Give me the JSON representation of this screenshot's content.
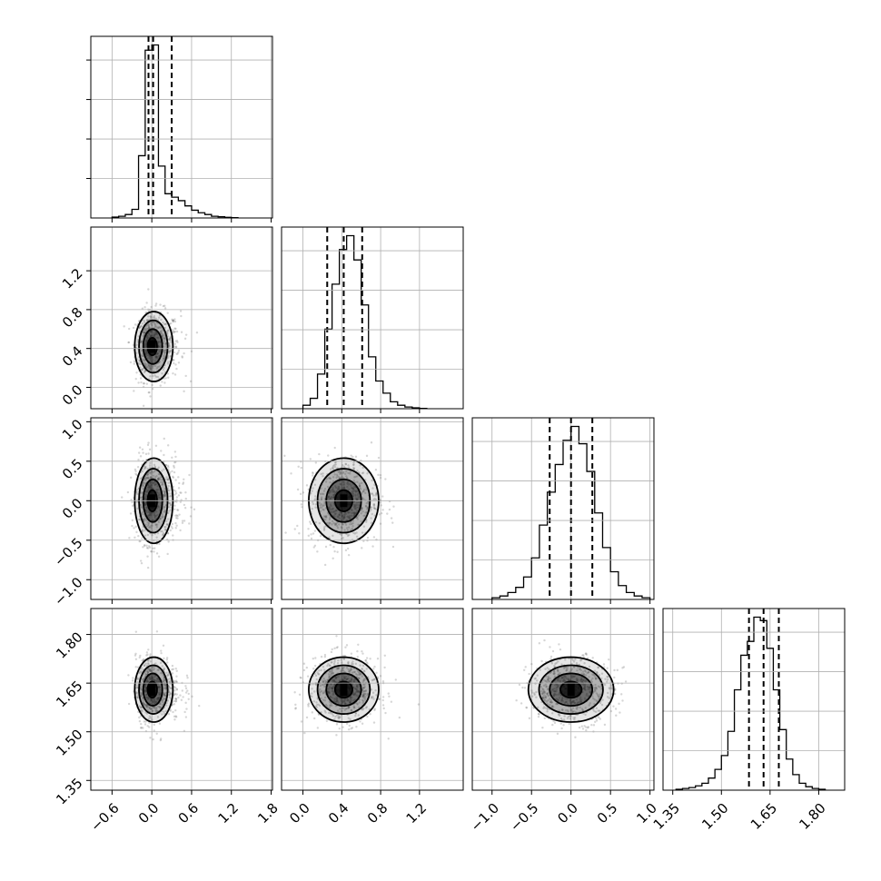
{
  "chart_data": {
    "type": "corner",
    "grid": true,
    "parameters": [
      {
        "range": [
          -0.92,
          1.82
        ],
        "ticks": [
          -0.6,
          0.0,
          0.6,
          1.2,
          1.8
        ],
        "tick_labels": [
          "−0.6",
          "0.0",
          "0.6",
          "1.2",
          "1.8"
        ],
        "histogram_bins": [
          -0.6,
          -0.5,
          -0.4,
          -0.3,
          -0.2,
          -0.1,
          0.0,
          0.1,
          0.2,
          0.3,
          0.4,
          0.5,
          0.6,
          0.7,
          0.8,
          0.9,
          1.0,
          1.1,
          1.2,
          1.3
        ],
        "histogram_density": [
          0.005,
          0.01,
          0.02,
          0.05,
          0.36,
          0.97,
          1.0,
          0.3,
          0.14,
          0.12,
          0.1,
          0.07,
          0.045,
          0.03,
          0.02,
          0.01,
          0.007,
          0.004,
          0.002
        ],
        "quantiles": [
          -0.05,
          0.02,
          0.3
        ],
        "center": 0.0,
        "spread": 0.12
      },
      {
        "range": [
          -0.22,
          1.65
        ],
        "ticks": [
          0.0,
          0.4,
          0.8,
          1.2
        ],
        "tick_labels": [
          "0.0",
          "0.4",
          "0.8",
          "1.2"
        ],
        "histogram_bins": [
          0.0,
          0.075,
          0.15,
          0.225,
          0.3,
          0.375,
          0.45,
          0.525,
          0.6,
          0.675,
          0.75,
          0.825,
          0.9,
          0.975,
          1.05,
          1.125,
          1.2,
          1.275
        ],
        "histogram_density": [
          0.02,
          0.06,
          0.2,
          0.46,
          0.72,
          0.92,
          1.0,
          0.86,
          0.6,
          0.3,
          0.16,
          0.09,
          0.04,
          0.02,
          0.01,
          0.005,
          0.002
        ],
        "quantiles": [
          0.25,
          0.42,
          0.61
        ],
        "center": 0.42,
        "spread": 0.18
      },
      {
        "range": [
          -1.25,
          1.05
        ],
        "ticks": [
          -1.0,
          -0.5,
          0.0,
          0.5,
          1.0
        ],
        "tick_labels": [
          "−1.0",
          "−0.5",
          "0.0",
          "0.5",
          "1.0"
        ],
        "histogram_bins": [
          -1.0,
          -0.9,
          -0.8,
          -0.7,
          -0.6,
          -0.5,
          -0.4,
          -0.3,
          -0.2,
          -0.1,
          0.0,
          0.1,
          0.2,
          0.3,
          0.4,
          0.5,
          0.6,
          0.7,
          0.8,
          0.9,
          1.0
        ],
        "histogram_density": [
          0.01,
          0.02,
          0.04,
          0.07,
          0.13,
          0.24,
          0.43,
          0.62,
          0.78,
          0.92,
          1.0,
          0.9,
          0.74,
          0.5,
          0.3,
          0.16,
          0.08,
          0.04,
          0.02,
          0.01
        ],
        "quantiles": [
          -0.27,
          0.0,
          0.27
        ],
        "center": 0.0,
        "spread": 0.27
      },
      {
        "range": [
          1.32,
          1.88
        ],
        "ticks": [
          1.35,
          1.5,
          1.65,
          1.8
        ],
        "tick_labels": [
          "1.35",
          "1.50",
          "1.65",
          "1.80"
        ],
        "histogram_bins": [
          1.36,
          1.38,
          1.4,
          1.42,
          1.44,
          1.46,
          1.48,
          1.5,
          1.52,
          1.54,
          1.56,
          1.58,
          1.6,
          1.62,
          1.64,
          1.66,
          1.68,
          1.7,
          1.72,
          1.74,
          1.76,
          1.78,
          1.8,
          1.82
        ],
        "histogram_density": [
          0.005,
          0.01,
          0.015,
          0.025,
          0.04,
          0.07,
          0.12,
          0.2,
          0.34,
          0.58,
          0.78,
          0.86,
          1.0,
          0.98,
          0.82,
          0.58,
          0.35,
          0.18,
          0.09,
          0.04,
          0.02,
          0.01,
          0.005
        ],
        "quantiles": [
          1.585,
          1.63,
          1.677
        ],
        "center": 1.63,
        "spread": 0.05
      }
    ],
    "sample_count_per_panel": 700,
    "contour_levels": [
      0.5,
      1.0,
      1.5,
      2.0
    ],
    "colors": {
      "ink": "#000000",
      "grid": "#b0b0b0",
      "samples": "#6a6a6a",
      "density_shade": "#000000"
    }
  }
}
